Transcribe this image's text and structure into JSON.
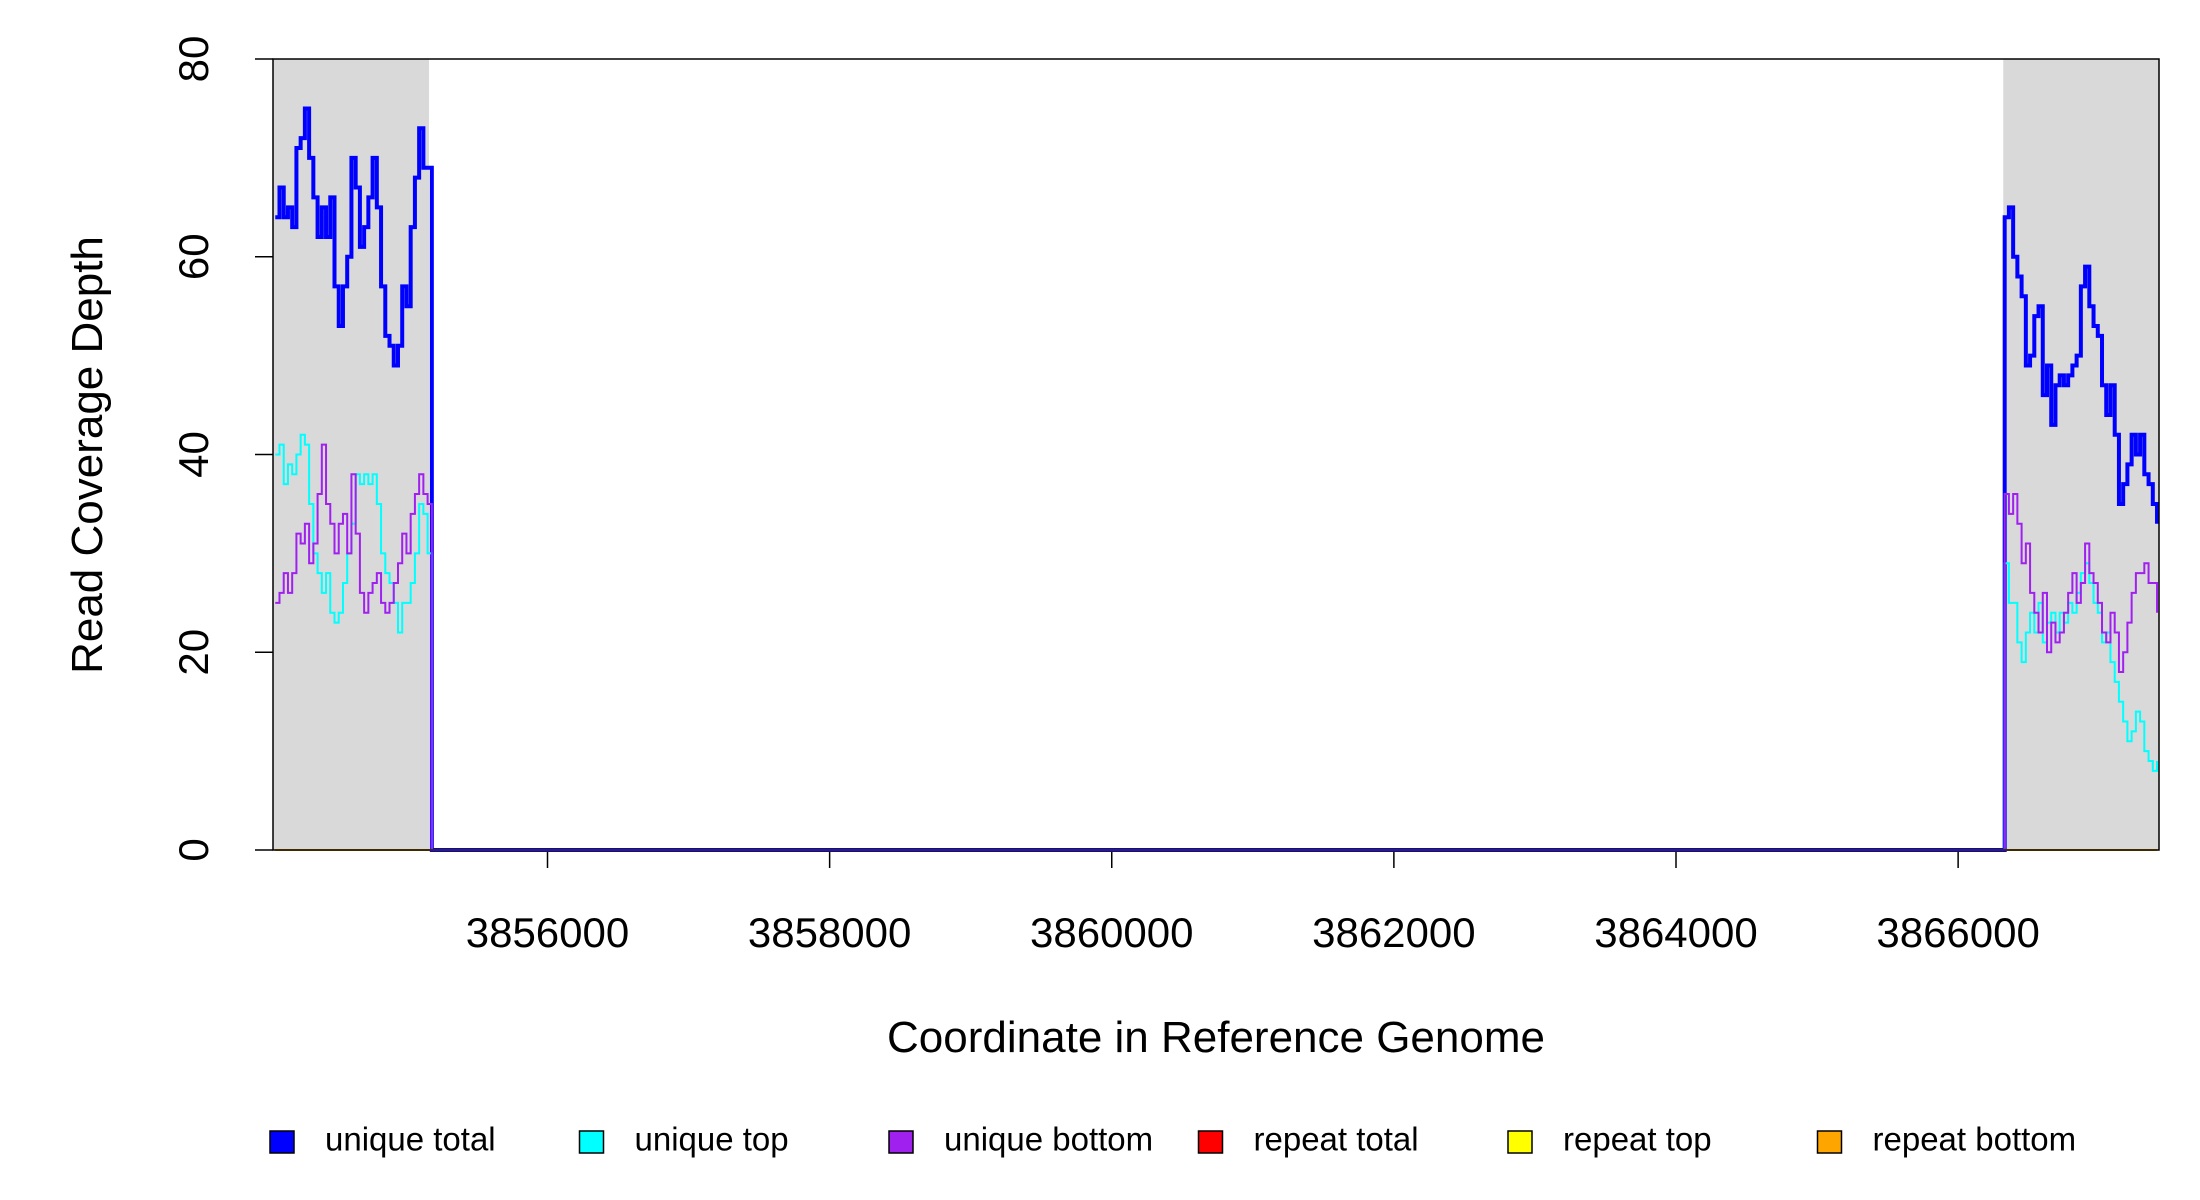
{
  "chart_data": {
    "type": "line",
    "step": true,
    "ylabel": "Read Coverage Depth",
    "xlabel": "Coordinate in Reference Genome",
    "xlim": [
      3854054,
      3867424
    ],
    "ylim": [
      0,
      80
    ],
    "xticks": [
      3856000,
      3858000,
      3860000,
      3862000,
      3864000,
      3866000
    ],
    "yticks": [
      0,
      20,
      40,
      60,
      80
    ],
    "shaded_regions": [
      [
        3854054,
        3855160
      ],
      [
        3866320,
        3867424
      ]
    ],
    "shade_color": "#d9d9d9",
    "legend": "bottom",
    "x": [
      3854070,
      3854100,
      3854130,
      3854160,
      3854190,
      3854220,
      3854250,
      3854280,
      3854310,
      3854340,
      3854370,
      3854400,
      3854430,
      3854460,
      3854490,
      3854520,
      3854550,
      3854580,
      3854610,
      3854640,
      3854670,
      3854700,
      3854730,
      3854760,
      3854790,
      3854820,
      3854850,
      3854880,
      3854910,
      3854940,
      3854970,
      3855000,
      3855030,
      3855060,
      3855090,
      3855120,
      3855150,
      3855180,
      3866300,
      3866330,
      3866360,
      3866390,
      3866420,
      3866450,
      3866480,
      3866510,
      3866540,
      3866570,
      3866600,
      3866630,
      3866660,
      3866690,
      3866720,
      3866750,
      3866780,
      3866810,
      3866840,
      3866870,
      3866900,
      3866930,
      3866960,
      3866990,
      3867020,
      3867050,
      3867080,
      3867110,
      3867140,
      3867170,
      3867200,
      3867230,
      3867260,
      3867290,
      3867320,
      3867350,
      3867380,
      3867410
    ],
    "series": [
      {
        "name": "unique total",
        "color": "#0000ff",
        "width": 4,
        "values": [
          64,
          67,
          64,
          65,
          63,
          71,
          72,
          75,
          70,
          66,
          62,
          65,
          62,
          66,
          57,
          53,
          57,
          60,
          70,
          67,
          61,
          63,
          66,
          70,
          65,
          57,
          52,
          51,
          49,
          51,
          57,
          55,
          63,
          68,
          73,
          69,
          69,
          0,
          0,
          64,
          65,
          60,
          58,
          56,
          49,
          50,
          54,
          55,
          46,
          49,
          43,
          47,
          48,
          47,
          48,
          49,
          50,
          57,
          59,
          55,
          53,
          52,
          47,
          44,
          47,
          42,
          35,
          37,
          39,
          42,
          40,
          42,
          38,
          37,
          35,
          33
        ]
      },
      {
        "name": "unique top",
        "color": "#00ffff",
        "width": 2,
        "values": [
          40,
          41,
          37,
          39,
          38,
          40,
          42,
          41,
          35,
          30,
          28,
          26,
          28,
          24,
          23,
          24,
          27,
          30,
          33,
          38,
          37,
          38,
          37,
          38,
          35,
          30,
          28,
          27,
          25,
          22,
          25,
          25,
          27,
          30,
          35,
          34,
          30,
          0,
          0,
          29,
          25,
          25,
          21,
          19,
          22,
          24,
          22,
          25,
          21,
          23,
          24,
          22,
          24,
          23,
          25,
          24,
          26,
          28,
          29,
          27,
          25,
          24,
          21,
          22,
          19,
          17,
          15,
          13,
          11,
          12,
          14,
          13,
          10,
          9,
          8,
          9
        ]
      },
      {
        "name": "unique bottom",
        "color": "#a020f0",
        "width": 2,
        "values": [
          25,
          26,
          28,
          26,
          28,
          32,
          31,
          33,
          29,
          31,
          36,
          41,
          35,
          33,
          30,
          33,
          34,
          30,
          38,
          32,
          26,
          24,
          26,
          27,
          28,
          25,
          24,
          25,
          27,
          29,
          32,
          30,
          34,
          36,
          38,
          36,
          35,
          0,
          0,
          36,
          34,
          36,
          33,
          29,
          31,
          26,
          24,
          22,
          26,
          20,
          23,
          21,
          22,
          24,
          26,
          28,
          25,
          27,
          31,
          28,
          27,
          25,
          22,
          21,
          24,
          22,
          18,
          20,
          23,
          26,
          28,
          28,
          29,
          27,
          27,
          24
        ]
      },
      {
        "name": "repeat total",
        "color": "#ff0000",
        "width": 2,
        "values": [
          0,
          0,
          0,
          0,
          0,
          0,
          0,
          0,
          0,
          0,
          0,
          0,
          0,
          0,
          0,
          0,
          0,
          0,
          0,
          0,
          0,
          0,
          0,
          0,
          0,
          0,
          0,
          0,
          0,
          0,
          0,
          0,
          0,
          0,
          0,
          0,
          0,
          0,
          0,
          0,
          0,
          0,
          0,
          0,
          0,
          0,
          0,
          0,
          0,
          0,
          0,
          0,
          0,
          0,
          0,
          0,
          0,
          0,
          0,
          0,
          0,
          0,
          0,
          0,
          0,
          0,
          0,
          0,
          0,
          0,
          0,
          0,
          0,
          0,
          0,
          0
        ]
      },
      {
        "name": "repeat top",
        "color": "#ffff00",
        "width": 2,
        "values": [
          0,
          0,
          0,
          0,
          0,
          0,
          0,
          0,
          0,
          0,
          0,
          0,
          0,
          0,
          0,
          0,
          0,
          0,
          0,
          0,
          0,
          0,
          0,
          0,
          0,
          0,
          0,
          0,
          0,
          0,
          0,
          0,
          0,
          0,
          0,
          0,
          0,
          0,
          0,
          0,
          0,
          0,
          0,
          0,
          0,
          0,
          0,
          0,
          0,
          0,
          0,
          0,
          0,
          0,
          0,
          0,
          0,
          0,
          0,
          0,
          0,
          0,
          0,
          0,
          0,
          0,
          0,
          0,
          0,
          0,
          0,
          0,
          0,
          0,
          0,
          0
        ]
      },
      {
        "name": "repeat bottom",
        "color": "#ffa500",
        "width": 2,
        "values": [
          0,
          0,
          0,
          0,
          0,
          0,
          0,
          0,
          0,
          0,
          0,
          0,
          0,
          0,
          0,
          0,
          0,
          0,
          0,
          0,
          0,
          0,
          0,
          0,
          0,
          0,
          0,
          0,
          0,
          0,
          0,
          0,
          0,
          0,
          0,
          0,
          0,
          0,
          0,
          0,
          0,
          0,
          0,
          0,
          0,
          0,
          0,
          0,
          0,
          0,
          0,
          0,
          0,
          0,
          0,
          0,
          0,
          0,
          0,
          0,
          0,
          0,
          0,
          0,
          0,
          0,
          0,
          0,
          0,
          0,
          0,
          0,
          0,
          0,
          0,
          0
        ]
      }
    ]
  }
}
